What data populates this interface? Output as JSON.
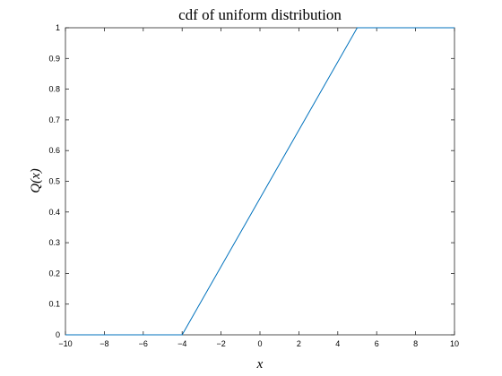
{
  "chart_data": {
    "type": "line",
    "title": "cdf of uniform distribution",
    "xlabel": "x",
    "ylabel": "Q(x)",
    "xlim": [
      -10,
      10
    ],
    "ylim": [
      0,
      1
    ],
    "xticks": [
      -10,
      -8,
      -6,
      -4,
      -2,
      0,
      2,
      4,
      6,
      8,
      10
    ],
    "xtick_labels": [
      "−10",
      "−8",
      "−6",
      "−4",
      "−2",
      "0",
      "2",
      "4",
      "6",
      "8",
      "10"
    ],
    "yticks": [
      0,
      0.1,
      0.2,
      0.3,
      0.4,
      0.5,
      0.6,
      0.7,
      0.8,
      0.9,
      1
    ],
    "ytick_labels": [
      "0",
      "0.1",
      "0.2",
      "0.3",
      "0.4",
      "0.5",
      "0.6",
      "0.7",
      "0.8",
      "0.9",
      "1"
    ],
    "grid": false,
    "series": [
      {
        "x": [
          -10,
          -4,
          5,
          10
        ],
        "y": [
          0,
          0,
          1,
          1
        ],
        "color": "#0072bd"
      }
    ]
  }
}
